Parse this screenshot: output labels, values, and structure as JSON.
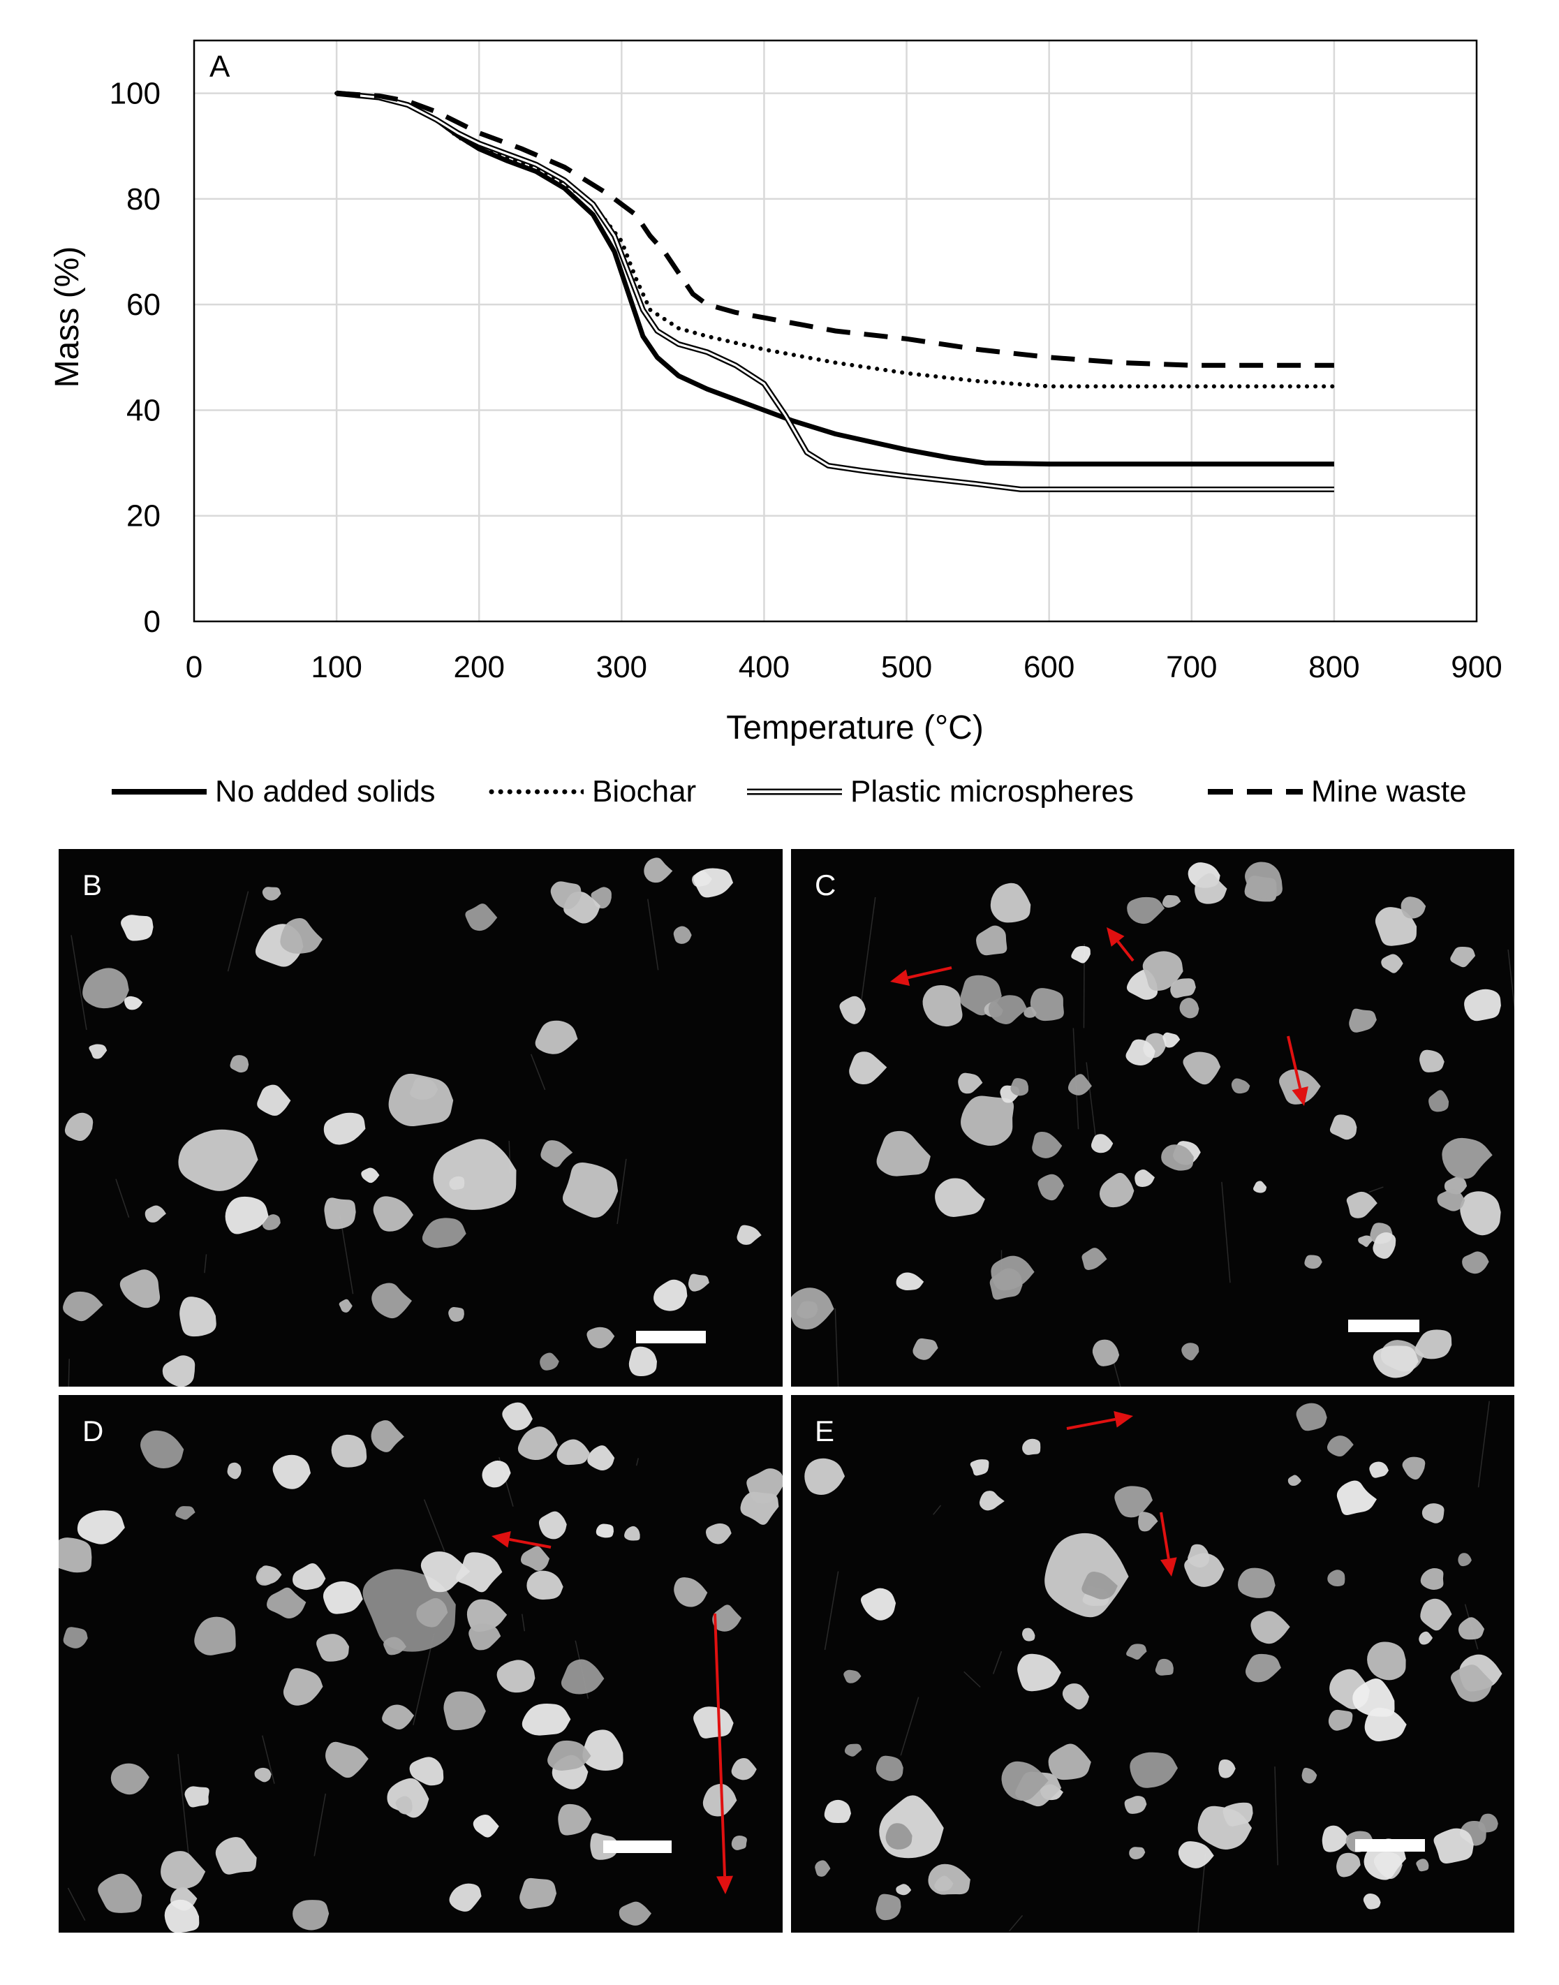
{
  "chart_data": {
    "type": "line",
    "panel_label": "A",
    "xlabel": "Temperature (°C)",
    "ylabel": "Mass (%)",
    "xlim": [
      0,
      900
    ],
    "ylim": [
      0,
      110
    ],
    "x_ticks": [
      0,
      100,
      200,
      300,
      400,
      500,
      600,
      700,
      800,
      900
    ],
    "y_ticks": [
      0,
      20,
      40,
      60,
      80,
      100
    ],
    "grid": true,
    "legend_position": "bottom",
    "series": [
      {
        "name": "No added solids",
        "style": "thick-solid",
        "color": "#000000",
        "points": [
          [
            100,
            100
          ],
          [
            130,
            99.2
          ],
          [
            150,
            97.8
          ],
          [
            170,
            95
          ],
          [
            185,
            92
          ],
          [
            200,
            89.5
          ],
          [
            220,
            87.2
          ],
          [
            240,
            85.2
          ],
          [
            260,
            82
          ],
          [
            280,
            77
          ],
          [
            295,
            70
          ],
          [
            305,
            62
          ],
          [
            315,
            54
          ],
          [
            325,
            50
          ],
          [
            340,
            46.5
          ],
          [
            360,
            44
          ],
          [
            380,
            42
          ],
          [
            400,
            40
          ],
          [
            420,
            38
          ],
          [
            450,
            35.5
          ],
          [
            500,
            32.5
          ],
          [
            530,
            31
          ],
          [
            555,
            30
          ],
          [
            600,
            29.8
          ],
          [
            700,
            29.8
          ],
          [
            800,
            29.8
          ]
        ]
      },
      {
        "name": "Biochar",
        "style": "dotted",
        "color": "#000000",
        "points": [
          [
            100,
            100
          ],
          [
            130,
            99.2
          ],
          [
            150,
            97.8
          ],
          [
            170,
            95
          ],
          [
            185,
            91.8
          ],
          [
            200,
            89.5
          ],
          [
            220,
            87.8
          ],
          [
            240,
            86
          ],
          [
            260,
            83
          ],
          [
            280,
            79
          ],
          [
            300,
            72
          ],
          [
            310,
            65
          ],
          [
            320,
            59
          ],
          [
            340,
            55.5
          ],
          [
            360,
            54
          ],
          [
            400,
            51.5
          ],
          [
            450,
            49
          ],
          [
            500,
            47
          ],
          [
            550,
            45.5
          ],
          [
            600,
            44.5
          ],
          [
            700,
            44.5
          ],
          [
            800,
            44.5
          ]
        ]
      },
      {
        "name": "Plastic microspheres",
        "style": "double-line",
        "color": "#000000",
        "points": [
          [
            100,
            100
          ],
          [
            130,
            99.2
          ],
          [
            150,
            97.8
          ],
          [
            170,
            95
          ],
          [
            185,
            92.5
          ],
          [
            200,
            90.5
          ],
          [
            220,
            88.5
          ],
          [
            240,
            86.5
          ],
          [
            260,
            83.5
          ],
          [
            280,
            79
          ],
          [
            295,
            73
          ],
          [
            305,
            66
          ],
          [
            315,
            59
          ],
          [
            325,
            55
          ],
          [
            340,
            52.5
          ],
          [
            360,
            51
          ],
          [
            380,
            48.5
          ],
          [
            400,
            45
          ],
          [
            415,
            39
          ],
          [
            430,
            32
          ],
          [
            445,
            29.5
          ],
          [
            470,
            28.5
          ],
          [
            500,
            27.5
          ],
          [
            550,
            26
          ],
          [
            580,
            25
          ],
          [
            650,
            25
          ],
          [
            800,
            25
          ]
        ]
      },
      {
        "name": "Mine waste",
        "style": "dashed",
        "color": "#000000",
        "points": [
          [
            100,
            100
          ],
          [
            130,
            99.5
          ],
          [
            150,
            98.5
          ],
          [
            170,
            96.5
          ],
          [
            200,
            92.5
          ],
          [
            230,
            89.5
          ],
          [
            260,
            86
          ],
          [
            290,
            81
          ],
          [
            310,
            77
          ],
          [
            320,
            73
          ],
          [
            330,
            70
          ],
          [
            340,
            66
          ],
          [
            350,
            62
          ],
          [
            360,
            60
          ],
          [
            380,
            58.5
          ],
          [
            400,
            57.5
          ],
          [
            450,
            55
          ],
          [
            500,
            53.5
          ],
          [
            550,
            51.5
          ],
          [
            600,
            50
          ],
          [
            650,
            49
          ],
          [
            700,
            48.5
          ],
          [
            800,
            48.5
          ]
        ]
      }
    ]
  },
  "photo_panels": [
    {
      "label": "B",
      "has_arrows": false
    },
    {
      "label": "C",
      "has_arrows": true,
      "arrow_count": 3,
      "arrow_color": "#e01010"
    },
    {
      "label": "D",
      "has_arrows": true,
      "arrow_count": 2,
      "arrow_color": "#e01010"
    },
    {
      "label": "E",
      "has_arrows": true,
      "arrow_count": 2,
      "arrow_color": "#e01010"
    }
  ],
  "scale_bar_color": "#ffffff",
  "background_color": "#050505"
}
